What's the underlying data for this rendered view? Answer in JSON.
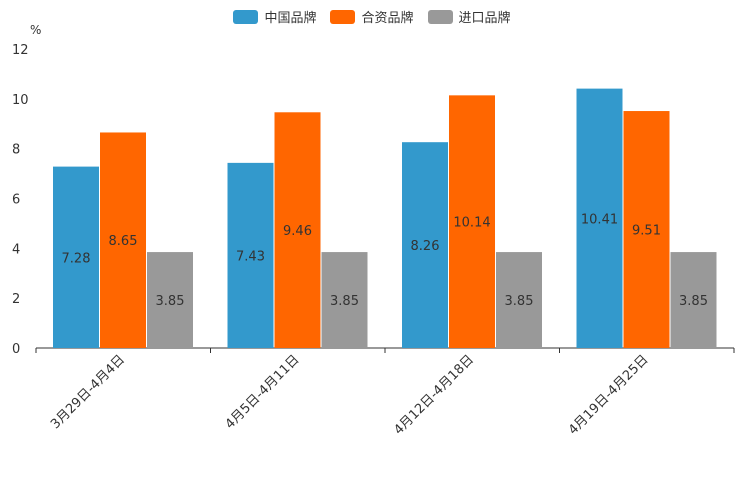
{
  "chart_data": {
    "type": "bar",
    "ylabel": "%",
    "ylim": [
      0,
      12
    ],
    "yticks": [
      "0",
      "2",
      "4",
      "6",
      "8",
      "10",
      "12"
    ],
    "categories": [
      "3月29日-4月4日",
      "4月5日-4月11日",
      "4月12日-4月18日",
      "4月19日-4月25日"
    ],
    "series": [
      {
        "name": "中国品牌",
        "color": "#3399cc",
        "values": [
          7.28,
          7.43,
          8.26,
          10.41
        ],
        "labels": [
          "7.28",
          "7.43",
          "8.26",
          "10.41"
        ]
      },
      {
        "name": "合资品牌",
        "color": "#ff6600",
        "values": [
          8.65,
          9.46,
          10.14,
          9.51
        ],
        "labels": [
          "8.65",
          "9.46",
          "10.14",
          "9.51"
        ]
      },
      {
        "name": "进口品牌",
        "color": "#999999",
        "values": [
          3.85,
          3.85,
          3.85,
          3.85
        ],
        "labels": [
          "3.85",
          "3.85",
          "3.85",
          "3.85"
        ]
      }
    ],
    "legend_position": "top-center",
    "grid": false
  }
}
